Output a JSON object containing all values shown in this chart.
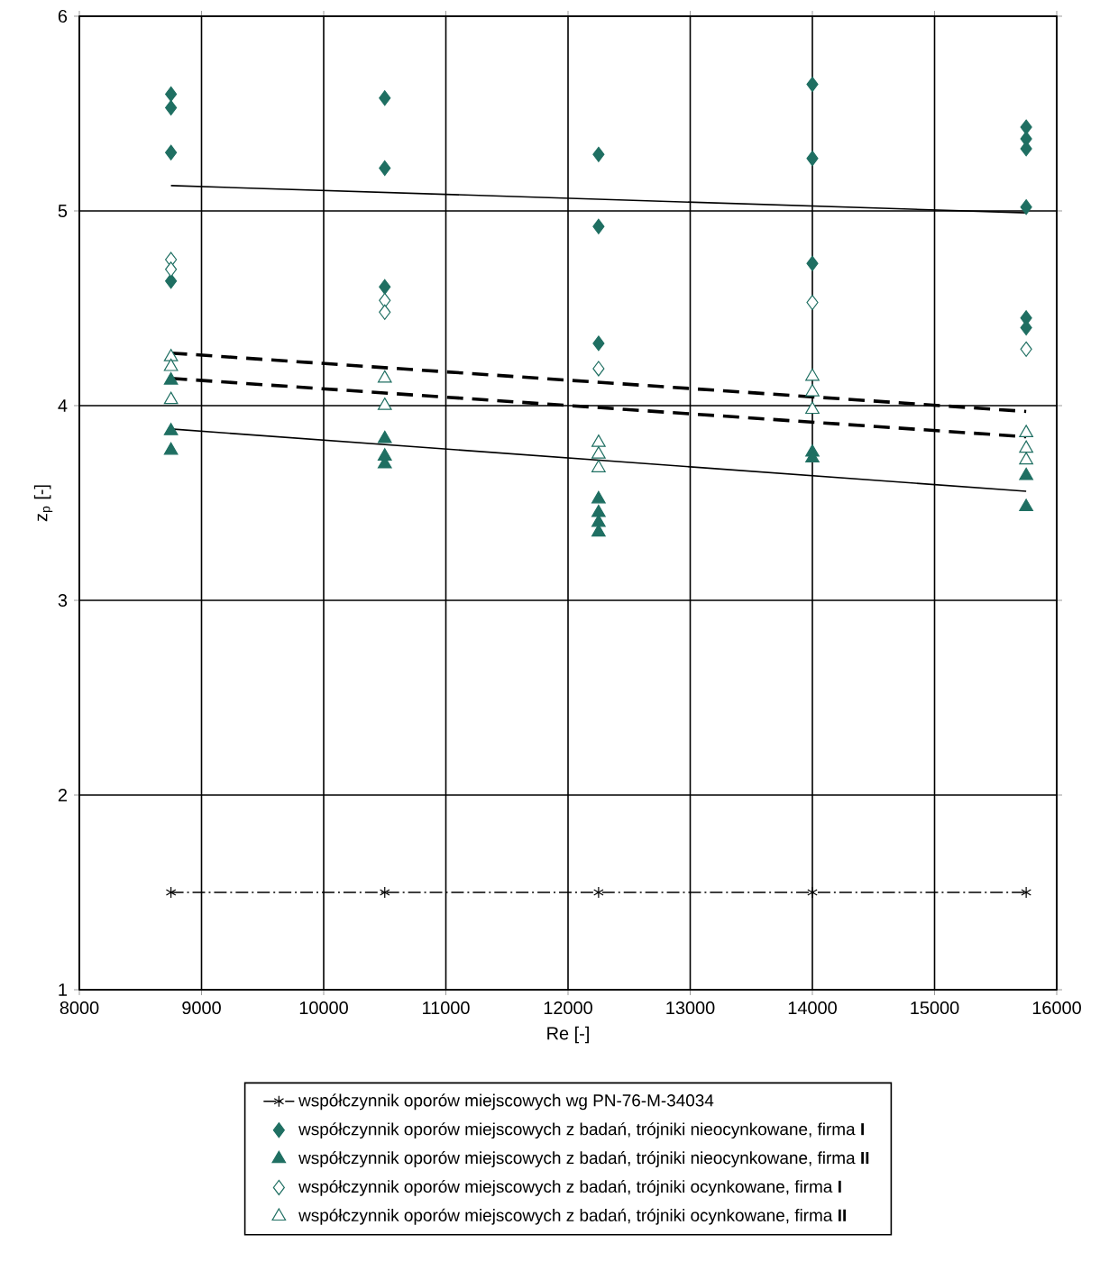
{
  "chart_data": {
    "type": "scatter",
    "xlabel": "Re   [-]",
    "ylabel": "z$_{p}$   [-]",
    "xlim": [
      8000,
      16000
    ],
    "xticks": [
      8000,
      9000,
      10000,
      11000,
      12000,
      13000,
      14000,
      15000,
      16000
    ],
    "ylim": [
      1,
      6
    ],
    "yticks": [
      1,
      2,
      3,
      4,
      5,
      6
    ],
    "grid": true,
    "legend": "bottom",
    "series": [
      {
        "name": "współczynnik oporów miejscowych wg PN-76-M-34034",
        "type": "line",
        "color": "#000000",
        "marker": "cross",
        "line_style": "dashdot",
        "x": [
          8750,
          10500,
          12250,
          14000,
          15750
        ],
        "values": [
          1.5,
          1.5,
          1.5,
          1.5,
          1.5
        ]
      },
      {
        "name": "współczynnik oporów miejscowych z badań, trójniki nieocynkowane, firma **I**",
        "color": "#1f6f62",
        "marker": "diamond",
        "x": [
          8750,
          8750,
          8750,
          8750,
          10500,
          10500,
          10500,
          12250,
          12250,
          12250,
          14000,
          14000,
          14000,
          15750,
          15750,
          15750,
          15750,
          15750,
          15750
        ],
        "values": [
          5.6,
          5.53,
          5.3,
          4.64,
          5.58,
          5.22,
          4.61,
          5.29,
          4.92,
          4.32,
          5.65,
          5.27,
          4.73,
          5.43,
          5.37,
          5.32,
          5.02,
          4.45,
          4.4
        ]
      },
      {
        "name": "współczynnik oporów miejscowych z badań, trójniki nieocynkowane, firma **II**",
        "color": "#1f6f62",
        "marker": "triangle",
        "x": [
          8750,
          8750,
          8750,
          10500,
          10500,
          10500,
          12250,
          12250,
          12250,
          12250,
          14000,
          14000,
          15750,
          15750
        ],
        "values": [
          4.13,
          3.87,
          3.77,
          3.83,
          3.74,
          3.7,
          3.52,
          3.45,
          3.4,
          3.35,
          3.76,
          3.73,
          3.64,
          3.48
        ]
      },
      {
        "name": "współczynnik oporów miejscowych z badań, trójniki ocynkowane, firma **I**",
        "color": "#ffffff",
        "marker": "diamond",
        "x": [
          8750,
          8750,
          10500,
          10500,
          12250,
          14000,
          15750
        ],
        "values": [
          4.75,
          4.7,
          4.54,
          4.48,
          4.19,
          4.53,
          4.29
        ]
      },
      {
        "name": "współczynnik oporów miejscowych z badań, trójniki ocynkowane, firma **II**",
        "color": "#ffffff",
        "marker": "triangle",
        "x": [
          8750,
          8750,
          8750,
          10500,
          10500,
          12250,
          12250,
          12250,
          14000,
          14000,
          14000,
          15750,
          15750,
          15750
        ],
        "values": [
          4.25,
          4.2,
          4.03,
          4.14,
          4.0,
          3.81,
          3.75,
          3.68,
          4.15,
          4.07,
          3.98,
          3.86,
          3.78,
          3.72
        ]
      },
      {
        "type": "line",
        "color": "#000000",
        "marker": "none",
        "line_style": "solid",
        "x": [
          8750,
          15750
        ],
        "values": [
          5.13,
          4.99
        ]
      },
      {
        "type": "line",
        "color": "#000000",
        "marker": "none",
        "line_style": "solid",
        "x": [
          8750,
          15750
        ],
        "values": [
          3.88,
          3.56
        ]
      },
      {
        "type": "line",
        "color": "#000000",
        "marker": "none",
        "line_style": "dashed",
        "x": [
          8750,
          15750
        ],
        "values": [
          4.27,
          3.97
        ]
      },
      {
        "type": "line",
        "color": "#000000",
        "marker": "none",
        "line_style": "dashed",
        "x": [
          8750,
          15750
        ],
        "values": [
          4.14,
          3.84
        ]
      }
    ]
  }
}
